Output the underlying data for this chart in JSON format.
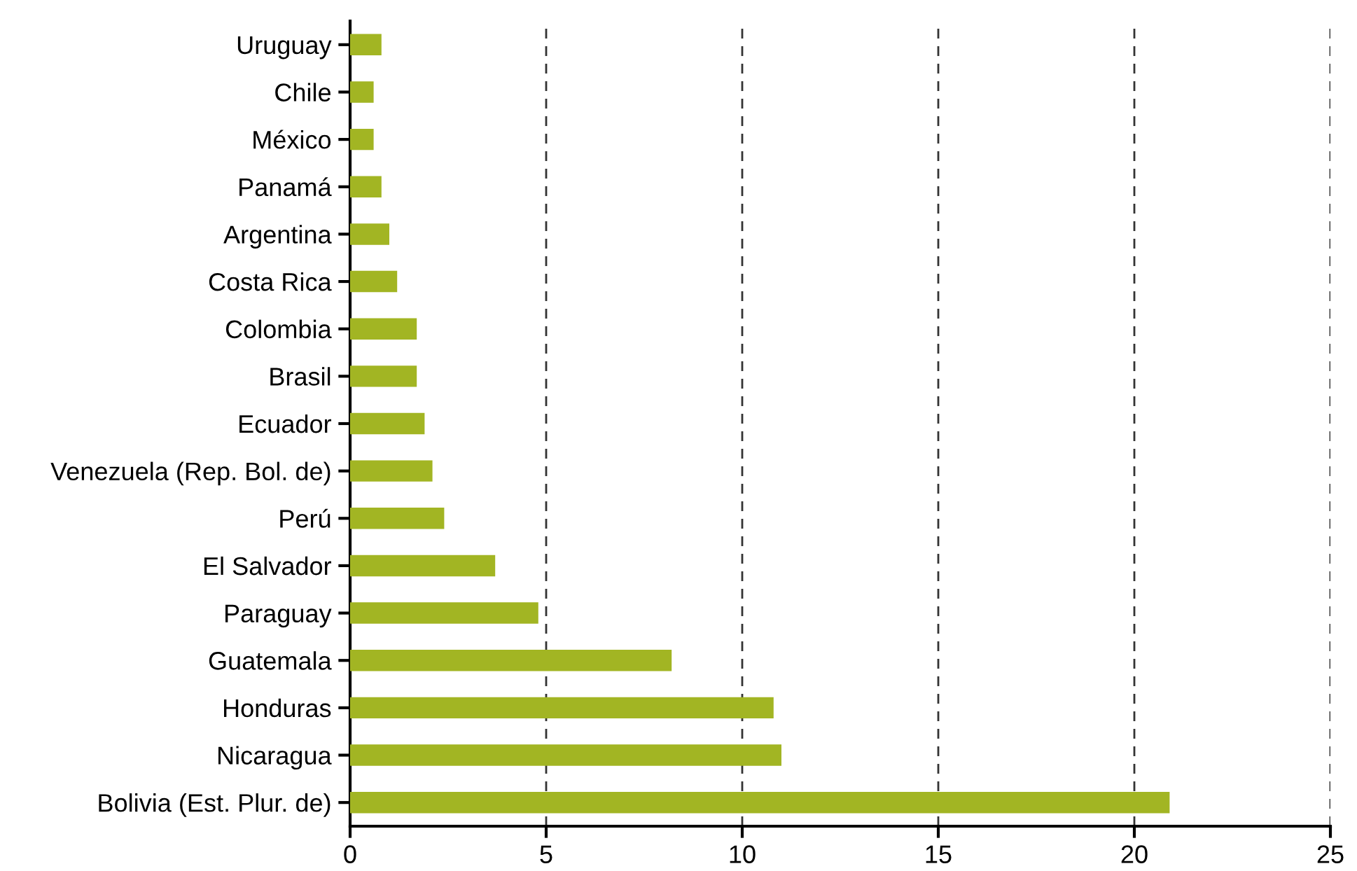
{
  "chart_data": {
    "type": "bar",
    "orientation": "horizontal",
    "categories": [
      "Uruguay",
      "Chile",
      "México",
      "Panamá",
      "Argentina",
      "Costa Rica",
      "Colombia",
      "Brasil",
      "Ecuador",
      "Venezuela (Rep. Bol. de)",
      "Perú",
      "El Salvador",
      "Paraguay",
      "Guatemala",
      "Honduras",
      "Nicaragua",
      "Bolivia (Est. Plur. de)"
    ],
    "values": [
      0.8,
      0.6,
      0.6,
      0.8,
      1.0,
      1.2,
      1.7,
      1.7,
      1.9,
      2.1,
      2.4,
      3.7,
      4.8,
      8.2,
      10.8,
      11.0,
      20.9
    ],
    "color": "#a2b523",
    "xlim": [
      0,
      25
    ],
    "xticks": [
      0,
      5,
      10,
      15,
      20,
      25
    ],
    "grid": "x",
    "line_style": "dashed"
  }
}
